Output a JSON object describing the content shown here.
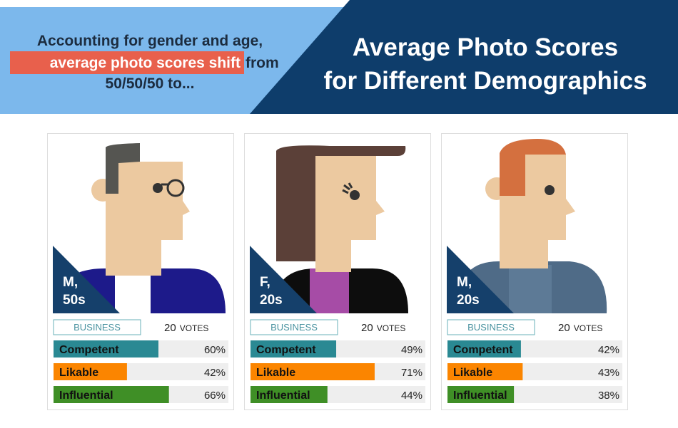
{
  "header": {
    "intro_line1": "Accounting for gender and age,",
    "intro_highlight": "average photo scores shift",
    "intro_from": "from",
    "intro_line3": "50/50/50 to...",
    "title_line1": "Average Photo Scores",
    "title_line2": "for Different Demographics"
  },
  "cards": [
    {
      "gender": "M,",
      "age": "50s",
      "tag": "BUSINESS",
      "votes": 20,
      "votes_label": "VOTES",
      "metrics": [
        {
          "name": "Competent",
          "value": 60,
          "value_label": "60%",
          "color": "#2a8993"
        },
        {
          "name": "Likable",
          "value": 42,
          "value_label": "42%",
          "color": "#fb8500"
        },
        {
          "name": "Influential",
          "value": 66,
          "value_label": "66%",
          "color": "#3f8f26"
        }
      ]
    },
    {
      "gender": "F,",
      "age": "20s",
      "tag": "BUSINESS",
      "votes": 20,
      "votes_label": "VOTES",
      "metrics": [
        {
          "name": "Competent",
          "value": 49,
          "value_label": "49%",
          "color": "#2a8993"
        },
        {
          "name": "Likable",
          "value": 71,
          "value_label": "71%",
          "color": "#fb8500"
        },
        {
          "name": "Influential",
          "value": 44,
          "value_label": "44%",
          "color": "#3f8f26"
        }
      ]
    },
    {
      "gender": "M,",
      "age": "20s",
      "tag": "BUSINESS",
      "votes": 20,
      "votes_label": "VOTES",
      "metrics": [
        {
          "name": "Competent",
          "value": 42,
          "value_label": "42%",
          "color": "#2a8993"
        },
        {
          "name": "Likable",
          "value": 43,
          "value_label": "43%",
          "color": "#fb8500"
        },
        {
          "name": "Influential",
          "value": 38,
          "value_label": "38%",
          "color": "#3f8f26"
        }
      ]
    }
  ]
}
